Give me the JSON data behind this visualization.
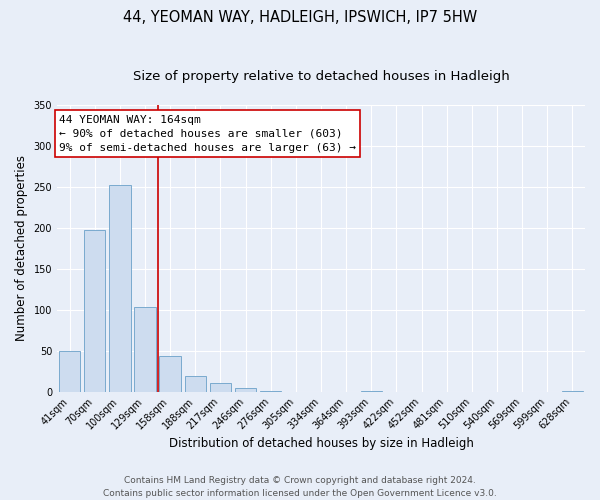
{
  "title": "44, YEOMAN WAY, HADLEIGH, IPSWICH, IP7 5HW",
  "subtitle": "Size of property relative to detached houses in Hadleigh",
  "xlabel": "Distribution of detached houses by size in Hadleigh",
  "ylabel": "Number of detached properties",
  "bin_labels": [
    "41sqm",
    "70sqm",
    "100sqm",
    "129sqm",
    "158sqm",
    "188sqm",
    "217sqm",
    "246sqm",
    "276sqm",
    "305sqm",
    "334sqm",
    "364sqm",
    "393sqm",
    "422sqm",
    "452sqm",
    "481sqm",
    "510sqm",
    "540sqm",
    "569sqm",
    "599sqm",
    "628sqm"
  ],
  "bar_values": [
    50,
    197,
    252,
    103,
    44,
    19,
    10,
    5,
    1,
    0,
    0,
    0,
    1,
    0,
    0,
    0,
    0,
    0,
    0,
    0,
    1
  ],
  "bar_color": "#cddcef",
  "bar_edge_color": "#7aaace",
  "vline_color": "#cc0000",
  "vline_x_index": 3.5,
  "annotation_title": "44 YEOMAN WAY: 164sqm",
  "annotation_line1": "← 90% of detached houses are smaller (603)",
  "annotation_line2": "9% of semi-detached houses are larger (63) →",
  "annotation_box_color": "#ffffff",
  "annotation_box_edge_color": "#cc0000",
  "ylim": [
    0,
    350
  ],
  "yticks": [
    0,
    50,
    100,
    150,
    200,
    250,
    300,
    350
  ],
  "footer_line1": "Contains HM Land Registry data © Crown copyright and database right 2024.",
  "footer_line2": "Contains public sector information licensed under the Open Government Licence v3.0.",
  "background_color": "#e8eef8",
  "grid_color": "#ffffff",
  "title_fontsize": 10.5,
  "subtitle_fontsize": 9.5,
  "axis_label_fontsize": 8.5,
  "tick_fontsize": 7,
  "annotation_fontsize": 8,
  "footer_fontsize": 6.5
}
